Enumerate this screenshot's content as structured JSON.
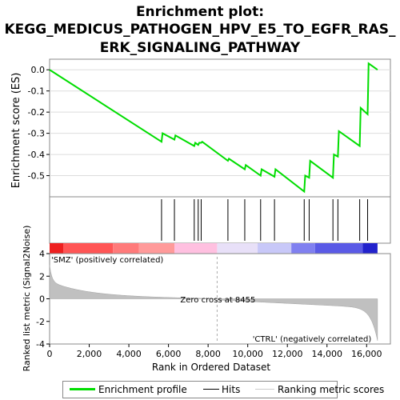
{
  "title_lines": [
    "Enrichment plot:",
    "KEGG_MEDICUS_PATHOGEN_HPV_E5_TO_EGFR_RAS_",
    "ERK_SIGNALING_PATHWAY"
  ],
  "chart_data": {
    "type": "line",
    "es_panel": {
      "ylabel": "Enrichment score (ES)",
      "ylim": [
        -0.6,
        0.05
      ],
      "yticks": [
        0.0,
        -0.1,
        -0.2,
        -0.3,
        -0.4,
        -0.5
      ],
      "ytick_labels": [
        "0.0",
        "-0.1",
        "-0.2",
        "-0.3",
        "-0.4",
        "-0.5"
      ],
      "series": {
        "name": "Enrichment profile",
        "x": [
          0,
          5650,
          5700,
          6300,
          6350,
          7300,
          7350,
          7500,
          7550,
          7650,
          7700,
          9000,
          9050,
          9850,
          9900,
          10650,
          10700,
          11350,
          11400,
          12850,
          12900,
          13100,
          13150,
          14300,
          14350,
          14550,
          14600,
          15650,
          15700,
          16050,
          16100,
          16550
        ],
        "y": [
          0.0,
          -0.34,
          -0.3,
          -0.33,
          -0.31,
          -0.36,
          -0.345,
          -0.355,
          -0.345,
          -0.345,
          -0.34,
          -0.43,
          -0.42,
          -0.47,
          -0.45,
          -0.5,
          -0.47,
          -0.505,
          -0.47,
          -0.575,
          -0.5,
          -0.51,
          -0.43,
          -0.51,
          -0.4,
          -0.41,
          -0.29,
          -0.36,
          -0.18,
          -0.21,
          0.03,
          0.0
        ]
      },
      "color": "#00dd00"
    },
    "hits": [
      5650,
      6300,
      7300,
      7500,
      7650,
      9000,
      9850,
      10650,
      11350,
      12850,
      13100,
      14300,
      14550,
      15650,
      16050
    ],
    "metric_panel": {
      "ylabel": "Ranked list metric (Signal2Noise)",
      "xlabel": "Rank in Ordered Dataset",
      "ylim": [
        -4,
        4
      ],
      "yticks": [
        4,
        2,
        0,
        -2,
        -4
      ],
      "xlim": [
        0,
        17200
      ],
      "xticks": [
        0,
        2000,
        4000,
        6000,
        8000,
        10000,
        12000,
        14000,
        16000
      ],
      "xtick_labels": [
        "0",
        "2,000",
        "4,000",
        "6,000",
        "8,000",
        "10,000",
        "12,000",
        "14,000",
        "16,000"
      ],
      "n_genes": 16550,
      "zero_cross": 8455,
      "zero_cross_label": "Zero cross at 8455",
      "pos_label": "'SMZ' (positively correlated)",
      "neg_label": "'CTRL' (negatively correlated)"
    },
    "heat_bar": [
      {
        "end": 700,
        "color": "#ee2020"
      },
      {
        "end": 3200,
        "color": "#ff5555"
      },
      {
        "end": 4500,
        "color": "#ff7a7a"
      },
      {
        "end": 6300,
        "color": "#ff9a9a"
      },
      {
        "end": 8455,
        "color": "#ffc0e0"
      },
      {
        "end": 10500,
        "color": "#e8e0f8"
      },
      {
        "end": 12200,
        "color": "#c8c8f8"
      },
      {
        "end": 13400,
        "color": "#8080f0"
      },
      {
        "end": 15800,
        "color": "#5a5ae6"
      },
      {
        "end": 16550,
        "color": "#2222cc"
      }
    ]
  },
  "legend": {
    "items": [
      "Enrichment profile",
      "Hits",
      "Ranking metric scores"
    ],
    "colors": [
      "#00dd00",
      "#000000",
      "#cccccc"
    ]
  }
}
